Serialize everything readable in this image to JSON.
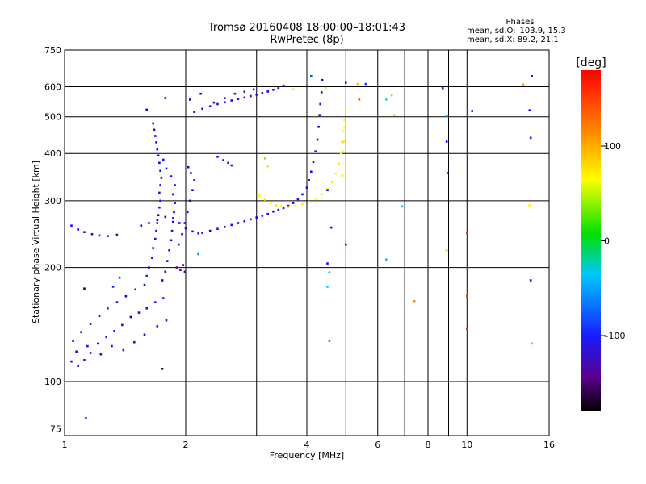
{
  "header": {
    "title": "Tromsø 20160408 18:00:00–18:01:43",
    "subtitle": "RwPretec (8p)"
  },
  "stats": {
    "heading": "Phases",
    "line_o": "mean, sd,O:–103.9, 15.3",
    "line_x": "mean, sd,X:  89.2, 21.1"
  },
  "colorbar": {
    "unit": "[deg]",
    "ticks": [
      {
        "value": 100,
        "label": "100"
      },
      {
        "value": 0,
        "label": "0"
      },
      {
        "value": -100,
        "label": "–100"
      }
    ],
    "range": [
      -180,
      180
    ]
  },
  "chart_data": {
    "type": "scatter",
    "xlabel": "Frequency [MHz]",
    "ylabel": "Stationary phase Virtual Height [km]",
    "xscale": "log",
    "yscale": "log",
    "xlim": [
      1,
      16
    ],
    "ylim": [
      72,
      750
    ],
    "x_ticks": [
      {
        "value": 1,
        "label": "1"
      },
      {
        "value": 2,
        "label": "2"
      },
      {
        "value": 4,
        "label": "4"
      },
      {
        "value": 6,
        "label": "6"
      },
      {
        "value": 8,
        "label": "8"
      },
      {
        "value": 10,
        "label": "10"
      },
      {
        "value": 16,
        "label": "16"
      }
    ],
    "x_grid": [
      1,
      2,
      3,
      4,
      5,
      6,
      7,
      8,
      9,
      10,
      16
    ],
    "y_ticks": [
      {
        "value": 75,
        "label": "75"
      },
      {
        "value": 100,
        "label": "100"
      },
      {
        "value": 200,
        "label": "200"
      },
      {
        "value": 300,
        "label": "300"
      },
      {
        "value": 400,
        "label": "400"
      },
      {
        "value": 500,
        "label": "500"
      },
      {
        "value": 600,
        "label": "600"
      },
      {
        "value": 750,
        "label": "750"
      }
    ],
    "y_grid": [
      100,
      200,
      300,
      400,
      500,
      600
    ],
    "grid": true,
    "series": [
      {
        "points": [
          [
            1.04,
            113,
            -104
          ],
          [
            1.08,
            110,
            -110
          ],
          [
            1.12,
            114,
            -95
          ],
          [
            1.16,
            119,
            -120
          ],
          [
            1.21,
            126,
            -100
          ],
          [
            1.27,
            131,
            -90
          ],
          [
            1.33,
            136,
            -112
          ],
          [
            1.39,
            141,
            -130
          ],
          [
            1.46,
            148,
            -105
          ],
          [
            1.53,
            152,
            -98
          ],
          [
            1.6,
            156,
            -115
          ],
          [
            1.68,
            162,
            -92
          ],
          [
            1.76,
            166,
            -125
          ],
          [
            1.05,
            128,
            -100
          ],
          [
            1.1,
            135,
            -118
          ],
          [
            1.16,
            142,
            -96
          ],
          [
            1.22,
            149,
            -110
          ],
          [
            1.28,
            156,
            -88
          ],
          [
            1.35,
            162,
            -121
          ],
          [
            1.42,
            168,
            -102
          ],
          [
            1.5,
            175,
            -94
          ],
          [
            1.07,
            120,
            -108
          ],
          [
            1.14,
            124,
            -99
          ],
          [
            1.23,
            118,
            -117
          ],
          [
            1.31,
            124,
            -103
          ],
          [
            1.4,
            121,
            -91
          ],
          [
            1.49,
            127,
            -112
          ],
          [
            1.58,
            133,
            -100
          ],
          [
            1.7,
            140,
            -122
          ],
          [
            1.79,
            145,
            -98
          ],
          [
            1.58,
            180,
            -100
          ],
          [
            1.6,
            190,
            -90
          ],
          [
            1.62,
            200,
            -110
          ],
          [
            1.65,
            212,
            -102
          ],
          [
            1.66,
            225,
            -95
          ],
          [
            1.68,
            238,
            -118
          ],
          [
            1.69,
            250,
            -104
          ],
          [
            1.7,
            262,
            -92
          ],
          [
            1.71,
            275,
            -112
          ],
          [
            1.72,
            288,
            -100
          ],
          [
            1.73,
            300,
            -125
          ],
          [
            1.72,
            315,
            -96
          ],
          [
            1.73,
            330,
            -108
          ],
          [
            1.74,
            345,
            -115
          ],
          [
            1.73,
            360,
            -99
          ],
          [
            1.72,
            378,
            -103
          ],
          [
            1.71,
            395,
            -120
          ],
          [
            1.7,
            410,
            -94
          ],
          [
            1.69,
            428,
            -110
          ],
          [
            1.68,
            445,
            -100
          ],
          [
            1.67,
            462,
            -117
          ],
          [
            1.66,
            480,
            -97
          ],
          [
            1.75,
            185,
            -105
          ],
          [
            1.78,
            195,
            -112
          ],
          [
            1.8,
            208,
            -100
          ],
          [
            1.82,
            222,
            -93
          ],
          [
            1.84,
            236,
            -110
          ],
          [
            1.85,
            250,
            -120
          ],
          [
            1.86,
            264,
            -98
          ],
          [
            1.87,
            280,
            -104
          ],
          [
            1.88,
            296,
            -115
          ],
          [
            1.86,
            312,
            -101
          ],
          [
            1.88,
            330,
            -95
          ],
          [
            1.84,
            348,
            -108
          ],
          [
            1.79,
            365,
            -112
          ],
          [
            1.76,
            385,
            -100
          ],
          [
            1.9,
            200,
            -140
          ],
          [
            1.94,
            197,
            -150
          ],
          [
            1.97,
            203,
            -135
          ],
          [
            1.99,
            195,
            -145
          ],
          [
            1.92,
            230,
            -100
          ],
          [
            1.96,
            245,
            -112
          ],
          [
            1.99,
            262,
            -104
          ],
          [
            2.02,
            280,
            -98
          ],
          [
            2.05,
            300,
            -110
          ],
          [
            2.08,
            320,
            -102
          ],
          [
            2.1,
            340,
            -115
          ],
          [
            2.06,
            355,
            -96
          ],
          [
            2.03,
            368,
            -108
          ],
          [
            1.04,
            258,
            -103
          ],
          [
            1.08,
            252,
            -110
          ],
          [
            1.12,
            248,
            -99
          ],
          [
            1.17,
            245,
            -115
          ],
          [
            1.22,
            243,
            -101
          ],
          [
            1.28,
            242,
            -108
          ],
          [
            1.35,
            244,
            -120
          ],
          [
            1.55,
            258,
            -105
          ],
          [
            1.62,
            262,
            -95
          ],
          [
            1.7,
            267,
            -110
          ],
          [
            1.78,
            272,
            -100
          ],
          [
            1.86,
            270,
            -118
          ],
          [
            1.93,
            262,
            -102
          ],
          [
            2.0,
            254,
            -108
          ],
          [
            2.08,
            249,
            -96
          ],
          [
            2.15,
            246,
            -115
          ],
          [
            2.2,
            247,
            -100
          ],
          [
            2.3,
            250,
            -108
          ],
          [
            2.4,
            253,
            -96
          ],
          [
            2.5,
            256,
            -112
          ],
          [
            2.6,
            259,
            -101
          ],
          [
            2.7,
            262,
            -119
          ],
          [
            2.8,
            265,
            -97
          ],
          [
            2.9,
            268,
            -105
          ],
          [
            3.0,
            271,
            -110
          ],
          [
            3.1,
            274,
            -99
          ],
          [
            3.2,
            277,
            -116
          ],
          [
            3.3,
            281,
            -102
          ],
          [
            3.4,
            284,
            -107
          ],
          [
            3.5,
            287,
            -95
          ],
          [
            3.6,
            291,
            -112
          ],
          [
            3.7,
            296,
            -103
          ],
          [
            3.8,
            303,
            -118
          ],
          [
            3.9,
            312,
            -99
          ],
          [
            4.0,
            325,
            -106
          ],
          [
            4.05,
            340,
            -113
          ],
          [
            4.1,
            358,
            -100
          ],
          [
            4.15,
            380,
            -108
          ],
          [
            4.2,
            405,
            -96
          ],
          [
            4.25,
            435,
            -110
          ],
          [
            4.28,
            470,
            -103
          ],
          [
            4.3,
            505,
            -99
          ],
          [
            4.32,
            540,
            -115
          ],
          [
            4.35,
            580,
            -101
          ],
          [
            4.37,
            625,
            -108
          ],
          [
            2.1,
            515,
            -100
          ],
          [
            2.2,
            525,
            -110
          ],
          [
            2.3,
            533,
            -96
          ],
          [
            2.4,
            540,
            -115
          ],
          [
            2.5,
            546,
            -102
          ],
          [
            2.6,
            552,
            -108
          ],
          [
            2.7,
            557,
            -120
          ],
          [
            2.8,
            562,
            -99
          ],
          [
            2.9,
            567,
            -105
          ],
          [
            3.0,
            572,
            -113
          ],
          [
            3.1,
            577,
            -101
          ],
          [
            3.2,
            583,
            -108
          ],
          [
            3.3,
            589,
            -95
          ],
          [
            3.4,
            596,
            -112
          ],
          [
            3.5,
            604,
            -104
          ],
          [
            2.35,
            545,
            -140
          ],
          [
            2.5,
            560,
            -135
          ],
          [
            2.65,
            575,
            -142
          ],
          [
            2.8,
            582,
            -130
          ],
          [
            2.95,
            590,
            -138
          ],
          [
            2.4,
            392,
            -100
          ],
          [
            2.48,
            384,
            -110
          ],
          [
            2.55,
            378,
            -96
          ],
          [
            2.6,
            372,
            -120
          ],
          [
            2.05,
            555,
            -100
          ],
          [
            2.18,
            575,
            -108
          ],
          [
            1.78,
            560,
            -112
          ],
          [
            1.6,
            522,
            -104
          ],
          [
            1.32,
            178,
            -90
          ],
          [
            1.37,
            188,
            -80
          ],
          [
            1.12,
            176,
            -165
          ],
          [
            1.75,
            108,
            -160
          ],
          [
            1.13,
            80,
            -95
          ],
          [
            2.15,
            217,
            -60
          ]
        ]
      },
      {
        "points": [
          [
            3.05,
            310,
            100
          ],
          [
            3.15,
            302,
            108
          ],
          [
            3.25,
            296,
            95
          ],
          [
            3.35,
            292,
            112
          ],
          [
            3.45,
            290,
            102
          ],
          [
            3.6,
            289,
            118
          ],
          [
            3.75,
            291,
            97
          ],
          [
            3.9,
            294,
            105
          ],
          [
            4.05,
            298,
            110
          ],
          [
            4.2,
            304,
            99
          ],
          [
            4.35,
            312,
            115
          ],
          [
            4.5,
            322,
            101
          ],
          [
            4.62,
            336,
            107
          ],
          [
            4.72,
            354,
            96
          ],
          [
            4.8,
            376,
            112
          ],
          [
            4.86,
            400,
            104
          ],
          [
            4.9,
            428,
            118
          ],
          [
            4.93,
            458,
            99
          ],
          [
            4.96,
            490,
            108
          ],
          [
            5.0,
            520,
            101
          ],
          [
            4.9,
            350,
            90
          ],
          [
            4.92,
            405,
            100
          ],
          [
            4.94,
            430,
            110
          ],
          [
            4.96,
            470,
            100
          ],
          [
            3.2,
            370,
            110
          ],
          [
            3.7,
            590,
            112
          ],
          [
            4.45,
            595,
            110
          ],
          [
            5.35,
            610,
            125
          ],
          [
            6.5,
            570,
            130
          ],
          [
            6.6,
            505,
            115
          ],
          [
            5.4,
            555,
            160
          ]
        ]
      },
      {
        "points": [
          [
            6.9,
            290,
            -40
          ],
          [
            8.9,
            430,
            -110
          ],
          [
            8.95,
            355,
            -100
          ],
          [
            8.7,
            595,
            -120
          ],
          [
            8.9,
            502,
            -60
          ],
          [
            4.5,
            320,
            -110
          ],
          [
            4.6,
            255,
            -100
          ],
          [
            4.5,
            205,
            -105
          ],
          [
            4.5,
            178,
            -40
          ],
          [
            4.55,
            128,
            -50
          ],
          [
            4.55,
            194,
            -50
          ],
          [
            6.3,
            210,
            -40
          ],
          [
            10.3,
            518,
            -105
          ],
          [
            14.3,
            520,
            -100
          ],
          [
            14.4,
            185,
            -125
          ],
          [
            14.4,
            440,
            -90
          ],
          [
            14.5,
            640,
            -110
          ],
          [
            4.1,
            640,
            -80
          ],
          [
            3.15,
            388,
            60
          ],
          [
            5.0,
            230,
            -105
          ],
          [
            6.3,
            555,
            -20
          ],
          [
            7.4,
            163,
            150
          ],
          [
            8.9,
            222,
            120
          ],
          [
            10.0,
            247,
            170
          ],
          [
            10.0,
            168,
            170
          ],
          [
            10.0,
            138,
            170
          ],
          [
            14.3,
            292,
            105
          ],
          [
            14.5,
            126,
            140
          ],
          [
            13.8,
            608,
            140
          ],
          [
            5.0,
            615,
            -90
          ],
          [
            5.6,
            610,
            -80
          ]
        ]
      }
    ]
  }
}
